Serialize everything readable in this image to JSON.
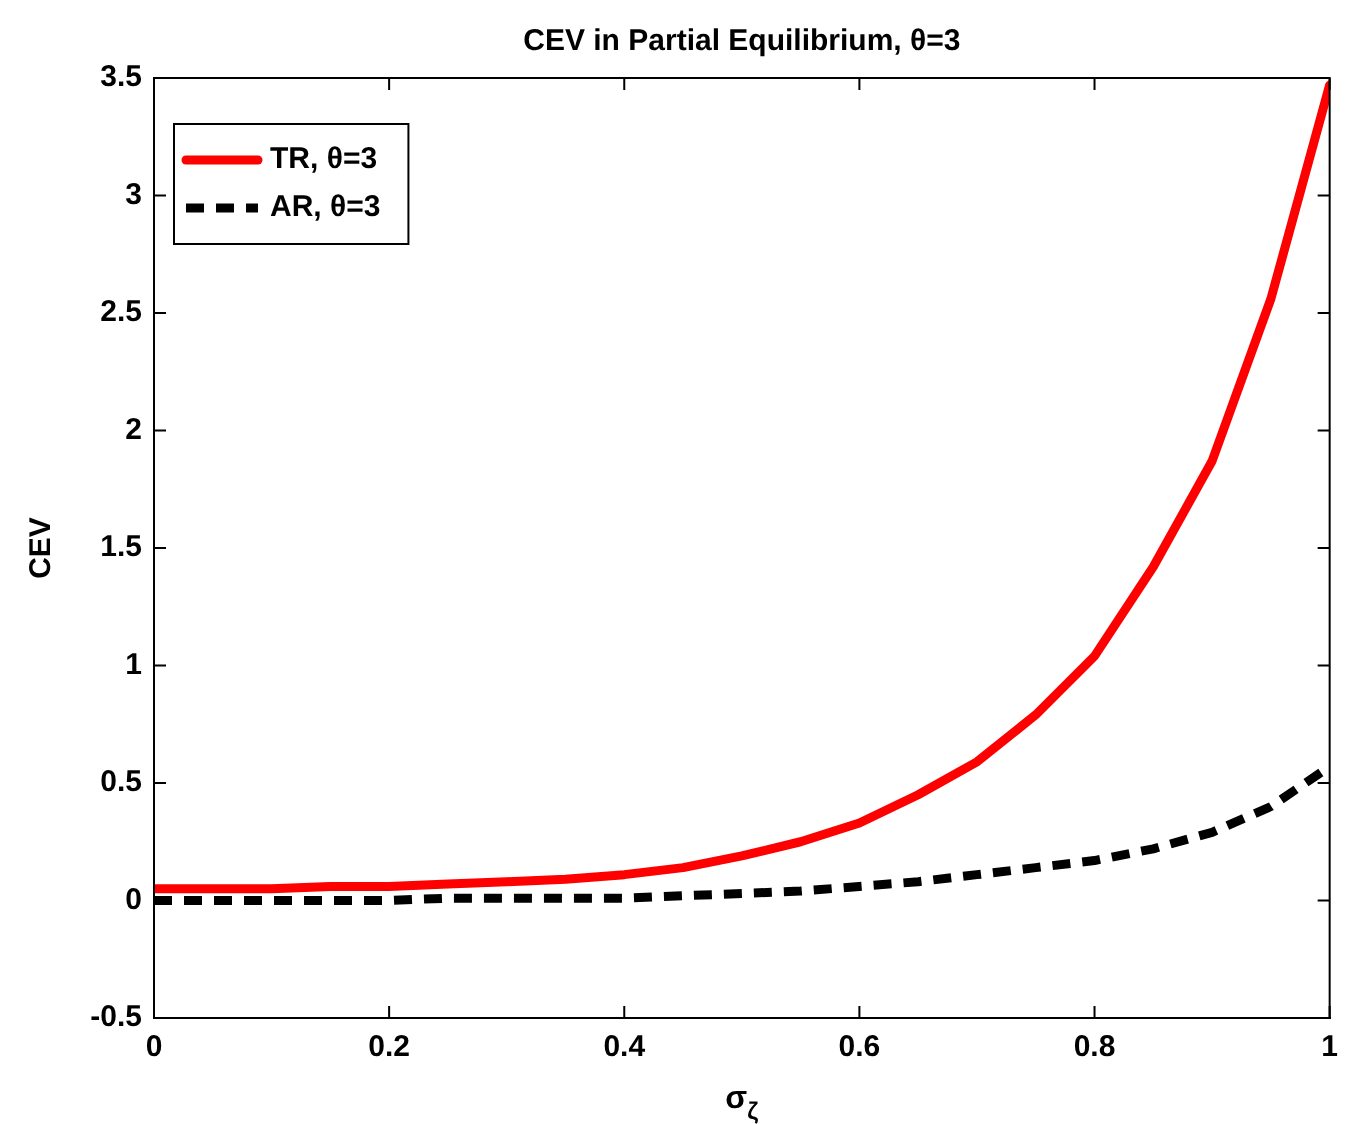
{
  "chart_data": {
    "type": "line",
    "title": "CEV in Partial Equilibrium, θ=3",
    "xlabel": "σ$_{ζ}$",
    "ylabel": "CEV",
    "x": [
      0,
      0.05,
      0.1,
      0.15,
      0.2,
      0.25,
      0.3,
      0.35,
      0.4,
      0.45,
      0.5,
      0.55,
      0.6,
      0.65,
      0.7,
      0.75,
      0.8,
      0.85,
      0.9,
      0.95,
      1
    ],
    "series": [
      {
        "name": "TR, θ=3",
        "color": "#ff0000",
        "line_style": "solid",
        "values": [
          0.05,
          0.05,
          0.05,
          0.06,
          0.06,
          0.07,
          0.08,
          0.09,
          0.11,
          0.14,
          0.19,
          0.25,
          0.33,
          0.45,
          0.59,
          0.79,
          1.04,
          1.42,
          1.87,
          2.56,
          3.47
        ]
      },
      {
        "name": "AR, θ=3",
        "color": "#000000",
        "line_style": "dashed",
        "values": [
          0,
          0,
          0,
          0,
          0,
          0.01,
          0.01,
          0.01,
          0.01,
          0.02,
          0.03,
          0.04,
          0.06,
          0.08,
          0.11,
          0.14,
          0.17,
          0.22,
          0.29,
          0.4,
          0.57
        ]
      }
    ],
    "xlim": [
      0,
      1
    ],
    "xticks": [
      0,
      0.2,
      0.4,
      0.6,
      0.8,
      1
    ],
    "ylim": [
      -0.5,
      3.5
    ],
    "yticks": [
      -0.5,
      0,
      0.5,
      1,
      1.5,
      2,
      2.5,
      3,
      3.5
    ],
    "grid": false,
    "legend": "top left",
    "marker": "none"
  }
}
